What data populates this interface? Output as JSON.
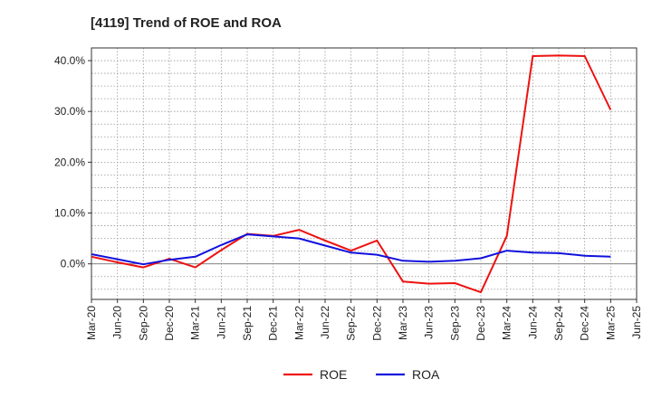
{
  "chart_data": {
    "type": "line",
    "title": "[4119]  Trend of ROE and ROA",
    "xlabel": "",
    "ylabel": "",
    "x_tick_labels": [
      "Mar-20",
      "Jun-20",
      "Sep-20",
      "Dec-20",
      "Mar-21",
      "Jun-21",
      "Sep-21",
      "Dec-21",
      "Mar-22",
      "Jun-22",
      "Sep-22",
      "Dec-22",
      "Mar-23",
      "Jun-23",
      "Sep-23",
      "Dec-23",
      "Mar-24",
      "Jun-24",
      "Sep-24",
      "Dec-24",
      "Mar-25",
      "Jun-25"
    ],
    "y_tick_labels": [
      "0.0%",
      "10.0%",
      "20.0%",
      "30.0%",
      "40.0%"
    ],
    "y_ticks": [
      0,
      10,
      20,
      30,
      40
    ],
    "ylim": [
      -7,
      42.5
    ],
    "grid": true,
    "legend_position": "bottom-center",
    "x": [
      "Mar-20",
      "Jun-20",
      "Sep-20",
      "Dec-20",
      "Mar-21",
      "Jun-21",
      "Sep-21",
      "Dec-21",
      "Mar-22",
      "Jun-22",
      "Sep-22",
      "Dec-22",
      "Mar-23",
      "Jun-23",
      "Sep-23",
      "Dec-23",
      "Mar-24",
      "Jun-24",
      "Sep-24",
      "Dec-24",
      "Mar-25"
    ],
    "series": [
      {
        "name": "ROE",
        "color": "#ee1111",
        "values": [
          1.4,
          0.3,
          -0.7,
          1.0,
          -0.7,
          2.7,
          5.9,
          5.5,
          6.7,
          4.6,
          2.6,
          4.6,
          -3.5,
          -3.9,
          -3.8,
          -5.6,
          5.5,
          40.9,
          41.0,
          40.9,
          30.3
        ]
      },
      {
        "name": "ROA",
        "color": "#1111dd",
        "values": [
          1.9,
          0.9,
          -0.1,
          0.8,
          1.4,
          3.7,
          5.8,
          5.4,
          5.0,
          3.6,
          2.2,
          1.8,
          0.6,
          0.4,
          0.6,
          1.1,
          2.6,
          2.2,
          2.1,
          1.6,
          1.4
        ]
      }
    ]
  }
}
